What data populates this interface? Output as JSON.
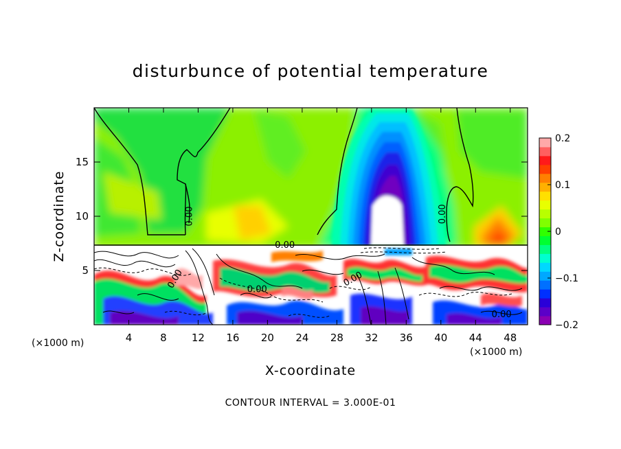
{
  "chart_data": {
    "type": "heatmap",
    "title": "disturbunce of potential temperature",
    "xlabel": "X-coordinate",
    "ylabel": "Z-coordinate",
    "x_unit_label": "(×1000 m)",
    "y_unit_label": "(×1000 m)",
    "xlim": [
      0,
      50
    ],
    "ylim": [
      0,
      20
    ],
    "x_ticks": [
      4,
      8,
      12,
      16,
      20,
      24,
      28,
      32,
      36,
      40,
      44,
      48
    ],
    "x_tick_labels": [
      "4",
      "8",
      "12",
      "16",
      "20",
      "24",
      "28",
      "32",
      "36",
      "40",
      "44",
      "48"
    ],
    "y_ticks": [
      5,
      10,
      15
    ],
    "y_tick_labels": [
      "5",
      "10",
      "15"
    ],
    "colorbar": {
      "min": -0.2,
      "max": 0.2,
      "ticks": [
        0.2,
        0.1,
        0,
        -0.1,
        -0.2
      ],
      "tick_labels": [
        "0.2",
        "0.1",
        "0",
        "−0.1",
        "−0.2"
      ],
      "colors": [
        "#8b00b3",
        "#5b00c8",
        "#2a00d8",
        "#0030ff",
        "#0070ff",
        "#00a8ff",
        "#00d8ff",
        "#00ffd0",
        "#00ff80",
        "#00ff30",
        "#30ff00",
        "#80ff00",
        "#b8ff00",
        "#e8ff00",
        "#ffe000",
        "#ffb000",
        "#ff8000",
        "#ff4000",
        "#ff1a1a",
        "#ff6060",
        "#ffa8a8"
      ]
    },
    "contour_labels": [
      {
        "text": "0.00",
        "x": 11.3,
        "z": 10.0,
        "rotate": -90
      },
      {
        "text": "0.00",
        "x": 40.5,
        "z": 10.2,
        "rotate": -90
      },
      {
        "text": "0.00",
        "x": 22.0,
        "z": 7.1,
        "rotate": 0
      },
      {
        "text": "0.00",
        "x": 9.6,
        "z": 4.1,
        "rotate": -60
      },
      {
        "text": "0.00",
        "x": 18.8,
        "z": 3.0,
        "rotate": 0
      },
      {
        "text": "0.00",
        "x": 30.0,
        "z": 4.0,
        "rotate": -30
      },
      {
        "text": "0.00",
        "x": 47.0,
        "z": 0.7,
        "rotate": 0
      }
    ],
    "features": [
      {
        "name": "cold-plume",
        "x": 34.5,
        "z": 12.5,
        "value": -0.2
      },
      {
        "name": "warm-spot",
        "x": 46.0,
        "z": 8.5,
        "value": 0.12
      },
      {
        "name": "boundary-layer-turbulence",
        "z_top": 7.3
      }
    ],
    "footer": "CONTOUR INTERVAL = 3.000E-01"
  }
}
